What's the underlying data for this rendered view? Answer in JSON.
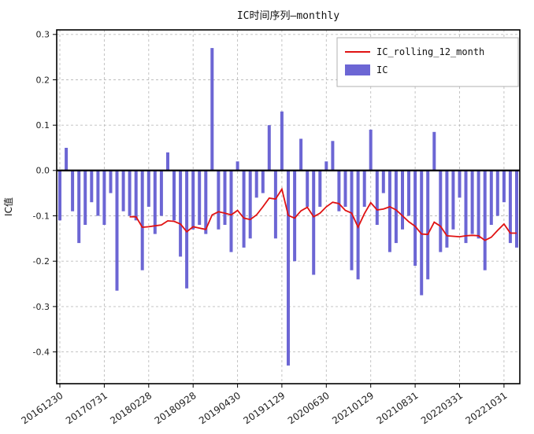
{
  "chart_data": {
    "type": "bar",
    "title": "IC时间序列—monthly",
    "ylabel": "IC值",
    "xlabel": "",
    "grid": true,
    "legend_position": "upper right",
    "ylim": [
      -0.47,
      0.31
    ],
    "yticks": [
      0.3,
      0.2,
      0.1,
      0.0,
      -0.1,
      -0.2,
      -0.3,
      -0.4
    ],
    "xtick_labels": [
      "20161230",
      "20170731",
      "20180228",
      "20180928",
      "20190430",
      "20191129",
      "20200630",
      "20210129",
      "20210831",
      "20220331",
      "20221031"
    ],
    "xtick_indices": [
      0,
      7,
      14,
      21,
      28,
      35,
      42,
      49,
      56,
      63,
      70
    ],
    "x": [
      "2016-12",
      "2017-01",
      "2017-02",
      "2017-03",
      "2017-04",
      "2017-05",
      "2017-06",
      "2017-07",
      "2017-08",
      "2017-09",
      "2017-10",
      "2017-11",
      "2017-12",
      "2018-01",
      "2018-02",
      "2018-03",
      "2018-04",
      "2018-05",
      "2018-06",
      "2018-07",
      "2018-08",
      "2018-09",
      "2018-10",
      "2018-11",
      "2018-12",
      "2019-01",
      "2019-02",
      "2019-03",
      "2019-04",
      "2019-05",
      "2019-06",
      "2019-07",
      "2019-08",
      "2019-09",
      "2019-10",
      "2019-11",
      "2019-12",
      "2020-01",
      "2020-02",
      "2020-03",
      "2020-04",
      "2020-05",
      "2020-06",
      "2020-07",
      "2020-08",
      "2020-09",
      "2020-10",
      "2020-11",
      "2020-12",
      "2021-01",
      "2021-02",
      "2021-03",
      "2021-04",
      "2021-05",
      "2021-06",
      "2021-07",
      "2021-08",
      "2021-09",
      "2021-10",
      "2021-11",
      "2021-12",
      "2022-01",
      "2022-02",
      "2022-03",
      "2022-04",
      "2022-05",
      "2022-06",
      "2022-07",
      "2022-08",
      "2022-09",
      "2022-10",
      "2022-11",
      "2022-12"
    ],
    "series": [
      {
        "name": "IC",
        "type": "bar",
        "color": "#6c66d4",
        "values": [
          -0.11,
          0.05,
          -0.09,
          -0.16,
          -0.12,
          -0.07,
          -0.1,
          -0.12,
          -0.05,
          -0.265,
          -0.09,
          -0.1,
          -0.11,
          -0.22,
          -0.08,
          -0.14,
          -0.1,
          0.04,
          -0.11,
          -0.19,
          -0.26,
          -0.13,
          -0.12,
          -0.14,
          0.27,
          -0.13,
          -0.12,
          -0.18,
          0.02,
          -0.17,
          -0.15,
          -0.06,
          -0.05,
          0.1,
          -0.15,
          0.13,
          -0.43,
          -0.2,
          0.07,
          -0.08,
          -0.23,
          -0.08,
          0.02,
          0.065,
          -0.09,
          -0.08,
          -0.22,
          -0.24,
          -0.08,
          0.09,
          -0.12,
          -0.05,
          -0.18,
          -0.16,
          -0.13,
          -0.1,
          -0.21,
          -0.275,
          -0.24,
          0.085,
          -0.18,
          -0.17,
          -0.13,
          -0.06,
          -0.16,
          -0.14,
          -0.15,
          -0.22,
          -0.12,
          -0.1,
          -0.07,
          -0.16,
          -0.17
        ]
      },
      {
        "name": "IC_rolling_12_month",
        "type": "line",
        "color": "#e01212",
        "window": 12,
        "values": [
          null,
          null,
          null,
          null,
          null,
          null,
          null,
          null,
          null,
          null,
          null,
          -0.102,
          -0.102,
          -0.125,
          -0.124,
          -0.122,
          -0.12,
          -0.111,
          -0.112,
          -0.118,
          -0.135,
          -0.124,
          -0.127,
          -0.13,
          -0.098,
          -0.091,
          -0.094,
          -0.098,
          -0.088,
          -0.105,
          -0.108,
          -0.098,
          -0.08,
          -0.061,
          -0.063,
          -0.041,
          -0.099,
          -0.105,
          -0.089,
          -0.081,
          -0.102,
          -0.094,
          -0.08,
          -0.07,
          -0.073,
          -0.088,
          -0.094,
          -0.125,
          -0.095,
          -0.071,
          -0.087,
          -0.085,
          -0.08,
          -0.087,
          -0.1,
          -0.113,
          -0.123,
          -0.14,
          -0.141,
          -0.114,
          -0.123,
          -0.144,
          -0.145,
          -0.146,
          -0.144,
          -0.143,
          -0.144,
          -0.154,
          -0.147,
          -0.132,
          -0.118,
          -0.138,
          -0.138
        ]
      }
    ],
    "zero_line_color": "#000000",
    "axis_color": "#000000",
    "grid_color": "#bdbdbd"
  }
}
